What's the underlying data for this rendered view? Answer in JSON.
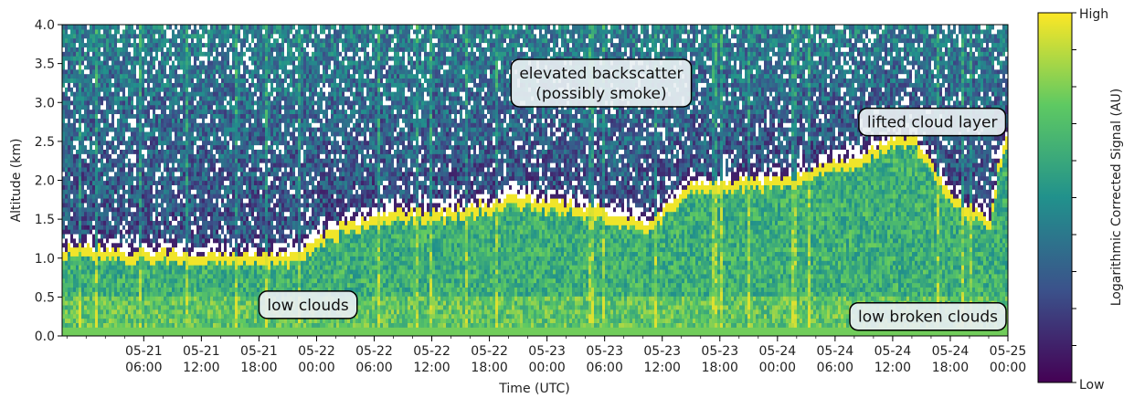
{
  "chart_data": {
    "type": "heatmap",
    "title": "",
    "xlabel": "Time (UTC)",
    "ylabel": "Altitude (km)",
    "ylim": [
      0.0,
      4.0
    ],
    "yticks": [
      "0.0",
      "0.5",
      "1.0",
      "1.5",
      "2.0",
      "2.5",
      "3.0",
      "3.5",
      "4.0"
    ],
    "xlim": [
      "05-20 21:30",
      "05-25 00:00"
    ],
    "xticks": [
      {
        "date": "05-21",
        "time": "06:00"
      },
      {
        "date": "05-21",
        "time": "12:00"
      },
      {
        "date": "05-21",
        "time": "18:00"
      },
      {
        "date": "05-22",
        "time": "00:00"
      },
      {
        "date": "05-22",
        "time": "06:00"
      },
      {
        "date": "05-22",
        "time": "12:00"
      },
      {
        "date": "05-22",
        "time": "18:00"
      },
      {
        "date": "05-23",
        "time": "00:00"
      },
      {
        "date": "05-23",
        "time": "06:00"
      },
      {
        "date": "05-23",
        "time": "12:00"
      },
      {
        "date": "05-23",
        "time": "18:00"
      },
      {
        "date": "05-24",
        "time": "00:00"
      },
      {
        "date": "05-24",
        "time": "06:00"
      },
      {
        "date": "05-24",
        "time": "12:00"
      },
      {
        "date": "05-24",
        "time": "18:00"
      },
      {
        "date": "05-25",
        "time": "00:00"
      }
    ],
    "colorbar": {
      "label": "Logarithmic Corrected Signal (AU)",
      "high_label": "High",
      "low_label": "Low",
      "colormap": "viridis",
      "colors": [
        "#440154",
        "#3b528b",
        "#21918c",
        "#5ec962",
        "#fde725"
      ]
    },
    "cloud_base_profile": {
      "time_hours": [
        0,
        8,
        16,
        24,
        29,
        34,
        40,
        48,
        56,
        62,
        66,
        72,
        78,
        80,
        84,
        88,
        90,
        94,
        98,
        99,
        100
      ],
      "altitude_km": [
        1.05,
        1.0,
        0.95,
        0.95,
        1.3,
        1.5,
        1.5,
        1.7,
        1.55,
        1.35,
        1.85,
        1.9,
        1.95,
        2.1,
        2.2,
        2.45,
        2.45,
        1.7,
        1.4,
        2.2,
        2.55
      ]
    },
    "annotations": [
      {
        "text_lines": [
          "elevated backscatter",
          "(possibly smoke)"
        ],
        "time_hours": 57,
        "altitude_km": 3.25
      },
      {
        "text_lines": [
          "lifted cloud layer"
        ],
        "time_hours": 92,
        "altitude_km": 2.75
      },
      {
        "text_lines": [
          "low clouds"
        ],
        "time_hours": 26,
        "altitude_km": 0.4
      },
      {
        "text_lines": [
          "low broken clouds"
        ],
        "time_hours": 96,
        "altitude_km": 0.25
      }
    ]
  }
}
